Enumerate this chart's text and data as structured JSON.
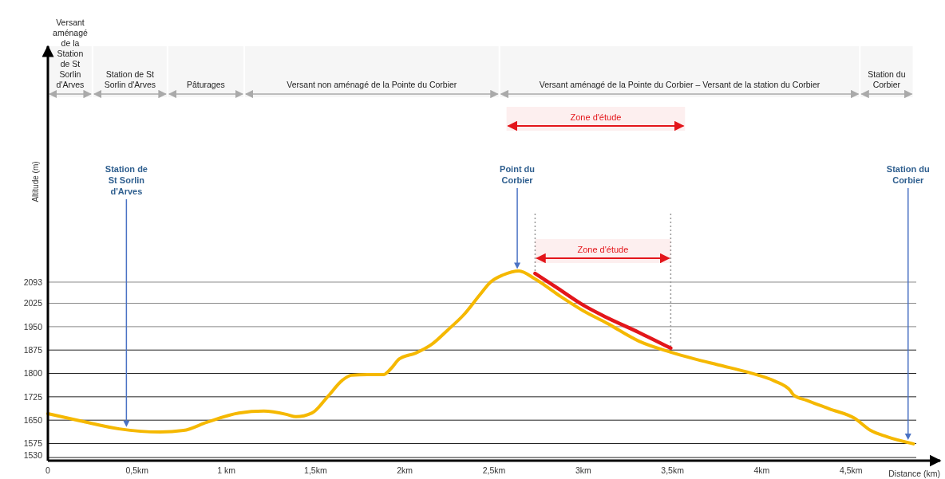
{
  "chart_data": {
    "type": "line",
    "xlabel": "Distance (km)",
    "ylabel": "Altitude (m)",
    "xlim": [
      0,
      5
    ],
    "ylim": [
      1520,
      2850
    ],
    "xticks": [
      0,
      {
        "value": 0.5,
        "label": "0,5km"
      },
      {
        "value": 1,
        "label": "1 km"
      },
      {
        "value": 1.5,
        "label": "1,5km"
      },
      {
        "value": 2,
        "label": "2km"
      },
      {
        "value": 2.5,
        "label": "2,5km"
      },
      {
        "value": 3,
        "label": "3km"
      },
      {
        "value": 3.5,
        "label": "3,5km"
      },
      {
        "value": 4,
        "label": "4km"
      },
      {
        "value": 4.5,
        "label": "4,5km"
      }
    ],
    "yticks": [
      1530,
      1575,
      1650,
      1725,
      1800,
      1875,
      1950,
      2025,
      2093
    ],
    "grid": "y",
    "line_style": "solid",
    "series": [
      {
        "color": "#f5b800",
        "x": [
          0,
          0.18,
          0.4,
          0.63,
          0.76,
          0.89,
          1.07,
          1.21,
          1.34,
          1.39,
          1.48,
          1.57,
          1.65,
          1.7,
          1.79,
          1.88,
          1.92,
          1.97,
          2.06,
          2.15,
          2.24,
          2.33,
          2.42,
          2.48,
          2.55,
          2.64,
          2.73,
          2.86,
          3.0,
          3.13,
          3.31,
          3.49,
          3.62,
          3.76,
          3.94,
          4.07,
          4.16,
          4.18,
          4.25,
          4.38,
          4.52,
          4.61,
          4.7,
          4.85
        ],
        "values": [
          1671,
          1648,
          1622,
          1612,
          1617,
          1643,
          1673,
          1679,
          1668,
          1661,
          1673,
          1727,
          1778,
          1794,
          1796,
          1796,
          1814,
          1847,
          1865,
          1893,
          1939,
          1988,
          2052,
          2093,
          2116,
          2129,
          2103,
          2052,
          2001,
          1962,
          1904,
          1868,
          1847,
          1827,
          1801,
          1776,
          1745,
          1730,
          1714,
          1686,
          1656,
          1617,
          1597,
          1574
        ]
      },
      {
        "color": "#e3161b",
        "x": [
          2.73,
          2.86,
          3.0,
          3.13,
          3.31,
          3.49
        ],
        "values": [
          2121,
          2072,
          2019,
          1980,
          1932,
          1881
        ]
      }
    ],
    "ref_lines": [
      {
        "axis": "x",
        "value": 2.73,
        "color": "#999999",
        "line_style": "dotted"
      },
      {
        "axis": "x",
        "value": 3.49,
        "color": "#999999",
        "line_style": "dotted"
      },
      {
        "axis": "x",
        "value": 0.44,
        "label": "Station de St Sorlin d'Arves",
        "color": "#4a72c4",
        "line_style": "solid"
      },
      {
        "axis": "x",
        "value": 2.63,
        "label": "Point du Corbier",
        "color": "#4a72c4",
        "line_style": "solid"
      },
      {
        "axis": "x",
        "value": 4.82,
        "label": "Station du Corbier",
        "color": "#4a72c4",
        "line_style": "solid"
      }
    ],
    "bands": [
      {
        "axis": "x",
        "from": 0,
        "to": 0.25,
        "label": "Versant aménagé de la Station de St Sorlin d'Arves"
      },
      {
        "axis": "x",
        "from": 0.25,
        "to": 0.67,
        "label": "Station de St Sorlin d'Arves"
      },
      {
        "axis": "x",
        "from": 0.67,
        "to": 1.1,
        "label": "Pâturages"
      },
      {
        "axis": "x",
        "from": 1.1,
        "to": 2.53,
        "label": "Versant non aménagé de la Pointe du Corbier"
      },
      {
        "axis": "x",
        "from": 2.53,
        "to": 4.55,
        "label": "Versant aménagé de la Pointe du Corbier – Versant de la station du Corbier"
      },
      {
        "axis": "x",
        "from": 4.55,
        "to": 4.85,
        "label": "Station du Corbier"
      },
      {
        "axis": "x",
        "from": 2.57,
        "to": 3.57,
        "label": "Zone d'étude",
        "color": "#e3161b"
      },
      {
        "axis": "x",
        "from": 2.73,
        "to": 3.49,
        "label": "Zone d'étude",
        "color": "#e3161b"
      }
    ]
  }
}
